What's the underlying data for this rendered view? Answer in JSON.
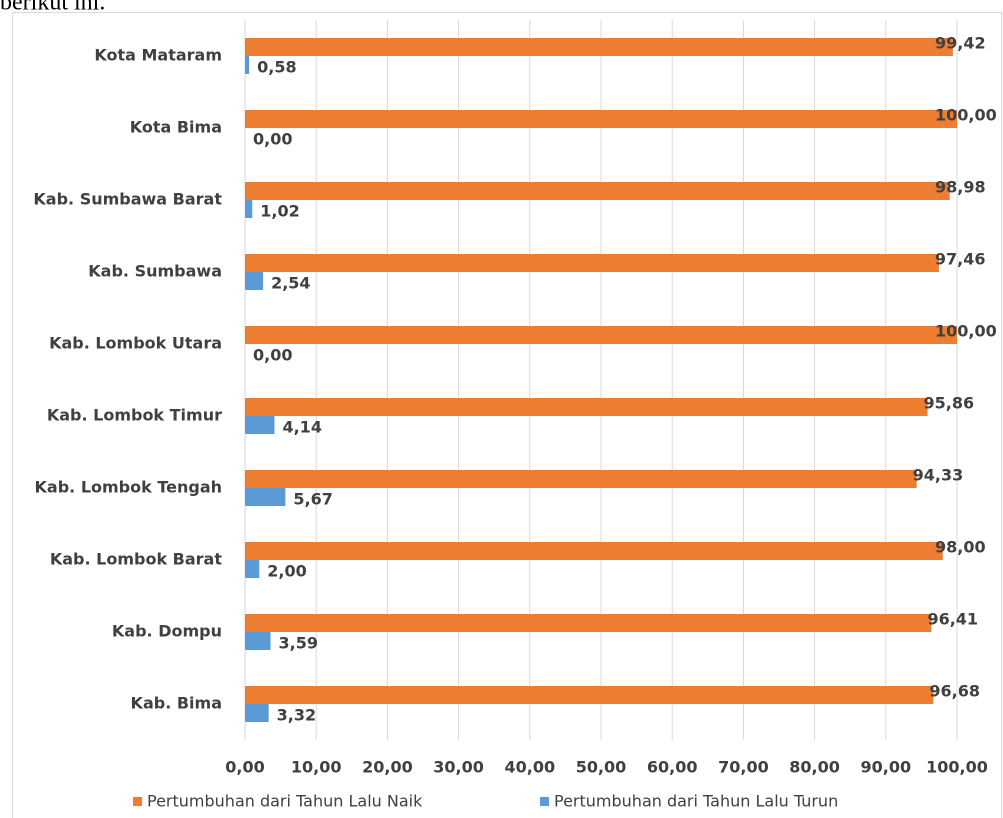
{
  "context_text": "berikut ini.",
  "chart_data": {
    "type": "hbar",
    "categories": [
      "Kota Mataram",
      "Kota Bima",
      "Kab. Sumbawa Barat",
      "Kab. Sumbawa",
      "Kab. Lombok Utara",
      "Kab. Lombok Timur",
      "Kab. Lombok Tengah",
      "Kab. Lombok Barat",
      "Kab. Dompu",
      "Kab. Bima"
    ],
    "series": [
      {
        "name": "Pertumbuhan dari Tahun Lalu Naik",
        "color": "#ed7d31",
        "values": [
          99.42,
          100,
          98.98,
          97.46,
          100,
          95.86,
          94.33,
          98,
          96.41,
          96.68
        ],
        "value_labels": [
          "99,42",
          "100,00",
          "98,98",
          "97,46",
          "100,00",
          "95,86",
          "94,33",
          "98,00",
          "96,41",
          "96,68"
        ]
      },
      {
        "name": "Pertumbuhan dari Tahun Lalu Turun",
        "color": "#5b9bd5",
        "values": [
          0.58,
          0,
          1.02,
          2.54,
          0,
          4.14,
          5.67,
          2,
          3.59,
          3.32
        ],
        "value_labels": [
          "0,58",
          "0,00",
          "1,02",
          "2,54",
          "0,00",
          "4,14",
          "5,67",
          "2,00",
          "3,59",
          "3,32"
        ]
      }
    ],
    "xlim": [
      0,
      100
    ],
    "xticks": [
      {
        "value": 0,
        "label": "0,00"
      },
      {
        "value": 10,
        "label": "10,00"
      },
      {
        "value": 20,
        "label": "20,00"
      },
      {
        "value": 30,
        "label": "30,00"
      },
      {
        "value": 40,
        "label": "40,00"
      },
      {
        "value": 50,
        "label": "50,00"
      },
      {
        "value": 60,
        "label": "60,00"
      },
      {
        "value": 70,
        "label": "70,00"
      },
      {
        "value": 80,
        "label": "80,00"
      },
      {
        "value": 90,
        "label": "90,00"
      },
      {
        "value": 100,
        "label": "100,00"
      }
    ],
    "grid": true,
    "legend": "bottom"
  }
}
